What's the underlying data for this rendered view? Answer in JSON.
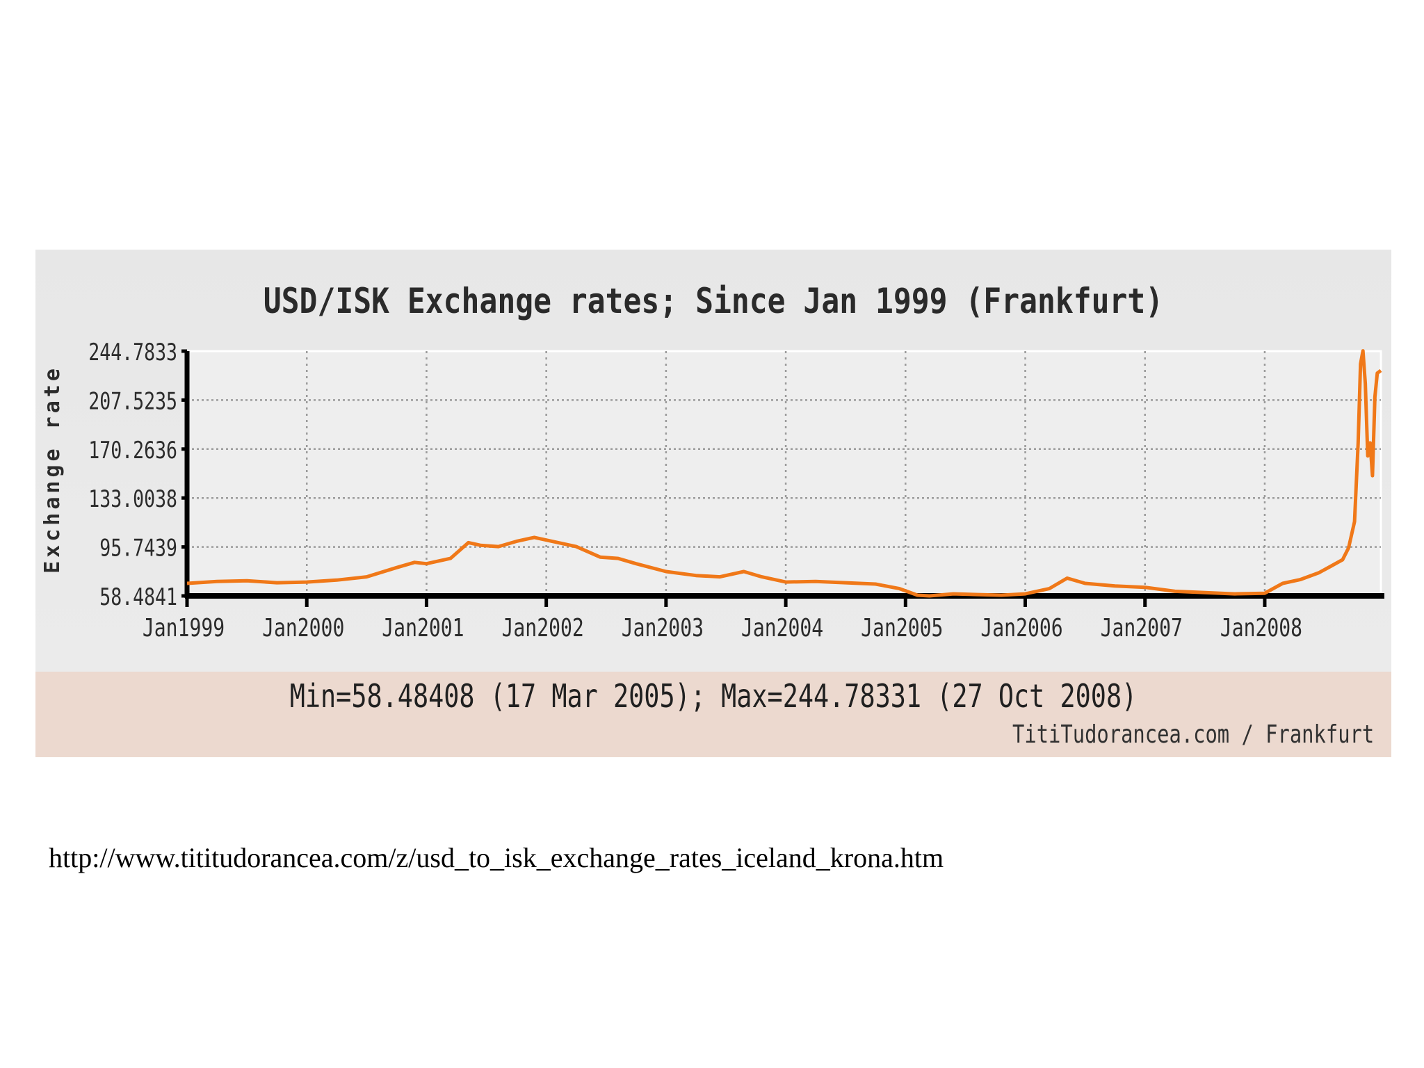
{
  "chart_data": {
    "type": "line",
    "title": "USD/ISK Exchange rates; Since Jan 1999 (Frankfurt)",
    "xlabel": "",
    "ylabel": "Exchange rate",
    "ylim": [
      58.4841,
      244.7833
    ],
    "xlim": [
      1999.0,
      2008.97
    ],
    "y_ticks": [
      "244.7833",
      "207.5235",
      "170.2636",
      "133.0038",
      "95.7439",
      "58.4841"
    ],
    "x_ticks": [
      "Jan1999",
      "Jan2000",
      "Jan2001",
      "Jan2002",
      "Jan2003",
      "Jan2004",
      "Jan2005",
      "Jan2006",
      "Jan2007",
      "Jan2008"
    ],
    "grid": true,
    "line_color": "#f07818",
    "series": [
      {
        "name": "USD/ISK",
        "x": [
          1999.0,
          1999.25,
          1999.5,
          1999.75,
          2000.0,
          2000.25,
          2000.5,
          2000.75,
          2000.9,
          2001.0,
          2001.2,
          2001.35,
          2001.45,
          2001.6,
          2001.75,
          2001.9,
          2002.0,
          2002.25,
          2002.45,
          2002.6,
          2002.75,
          2003.0,
          2003.25,
          2003.45,
          2003.65,
          2003.8,
          2004.0,
          2004.25,
          2004.5,
          2004.75,
          2004.95,
          2005.1,
          2005.2,
          2005.4,
          2005.6,
          2005.8,
          2006.0,
          2006.2,
          2006.35,
          2006.5,
          2006.75,
          2007.0,
          2007.25,
          2007.5,
          2007.75,
          2008.0,
          2008.15,
          2008.3,
          2008.45,
          2008.55,
          2008.65,
          2008.7,
          2008.75,
          2008.78,
          2008.8,
          2008.82,
          2008.84,
          2008.86,
          2008.88,
          2008.9,
          2008.92,
          2008.94,
          2008.97
        ],
        "values": [
          68,
          69.5,
          70,
          68.5,
          69,
          70.5,
          73,
          80,
          84,
          83,
          87,
          99,
          97,
          96,
          100,
          103,
          101,
          96,
          88,
          87,
          83,
          77,
          74,
          73,
          77,
          73,
          69,
          69.5,
          68.5,
          67.5,
          64,
          59,
          58.5,
          60,
          59.5,
          59,
          60,
          64,
          72,
          68,
          66,
          65,
          62,
          61,
          60,
          60.5,
          68,
          71,
          76,
          81,
          86,
          95,
          115,
          175,
          235,
          245,
          220,
          165,
          175,
          150,
          210,
          228,
          230
        ]
      }
    ],
    "min_label": "Min=58.48408 (17 Mar 2005); Max=244.78331 (27 Oct 2008)",
    "credit": "TitiTudorancea.com / Frankfurt"
  },
  "source_url": "http://www.tititudorancea.com/z/usd_to_isk_exchange_rates_iceland_krona.htm"
}
